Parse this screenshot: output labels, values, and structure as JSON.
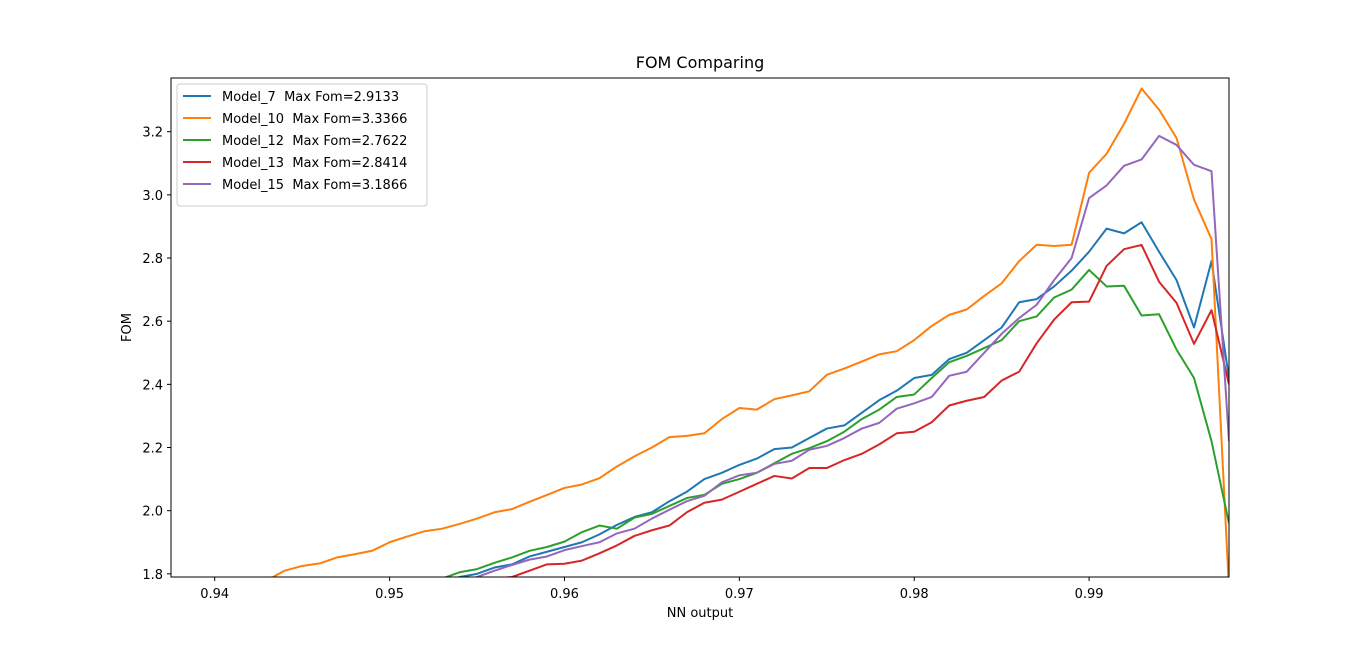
{
  "chart_data": {
    "type": "line",
    "title": "FOM Comparing",
    "xlabel": "NN output",
    "ylabel": "FOM",
    "xlim": [
      0.9375,
      0.998
    ],
    "ylim": [
      1.79,
      3.37
    ],
    "xticks": [
      "0.94",
      "0.95",
      "0.96",
      "0.97",
      "0.98",
      "0.99"
    ],
    "yticks": [
      "1.8",
      "2.0",
      "2.2",
      "2.4",
      "2.6",
      "2.8",
      "3.0",
      "3.2"
    ],
    "grid": false,
    "legend_position": "top-left",
    "series": [
      {
        "name": "Model_7  Max Fom=2.9133",
        "color": "#1f77b4",
        "x": [
          0.953,
          0.954,
          0.955,
          0.956,
          0.957,
          0.958,
          0.959,
          0.96,
          0.961,
          0.962,
          0.963,
          0.964,
          0.965,
          0.966,
          0.967,
          0.968,
          0.969,
          0.97,
          0.971,
          0.972,
          0.973,
          0.974,
          0.975,
          0.976,
          0.977,
          0.978,
          0.979,
          0.98,
          0.981,
          0.982,
          0.983,
          0.984,
          0.985,
          0.986,
          0.987,
          0.988,
          0.989,
          0.99,
          0.991,
          0.992,
          0.993,
          0.994,
          0.995,
          0.996,
          0.997,
          0.998
        ],
        "y": [
          1.77,
          1.79,
          1.8,
          1.82,
          1.83,
          1.855,
          1.87,
          1.885,
          1.9,
          1.925,
          1.955,
          1.98,
          1.995,
          2.03,
          2.06,
          2.1,
          2.12,
          2.145,
          2.165,
          2.195,
          2.2,
          2.23,
          2.26,
          2.27,
          2.31,
          2.35,
          2.38,
          2.42,
          2.43,
          2.48,
          2.5,
          2.54,
          2.58,
          2.66,
          2.67,
          2.71,
          2.76,
          2.82,
          2.893,
          2.878,
          2.9133,
          2.82,
          2.73,
          2.58,
          2.79,
          2.42
        ]
      },
      {
        "name": "Model_10  Max Fom=3.3366",
        "color": "#ff7f0e",
        "x": [
          0.942,
          0.943,
          0.944,
          0.945,
          0.946,
          0.947,
          0.948,
          0.949,
          0.95,
          0.951,
          0.952,
          0.953,
          0.954,
          0.955,
          0.956,
          0.957,
          0.958,
          0.959,
          0.96,
          0.961,
          0.962,
          0.963,
          0.964,
          0.965,
          0.966,
          0.967,
          0.968,
          0.969,
          0.97,
          0.971,
          0.972,
          0.973,
          0.974,
          0.975,
          0.976,
          0.977,
          0.978,
          0.979,
          0.98,
          0.981,
          0.982,
          0.983,
          0.984,
          0.985,
          0.986,
          0.987,
          0.988,
          0.989,
          0.99,
          0.991,
          0.992,
          0.993,
          0.994,
          0.995,
          0.996,
          0.997,
          0.998
        ],
        "y": [
          1.75,
          1.78,
          1.81,
          1.825,
          1.833,
          1.852,
          1.862,
          1.873,
          1.9,
          1.918,
          1.935,
          1.943,
          1.958,
          1.975,
          1.995,
          2.005,
          2.028,
          2.05,
          2.072,
          2.083,
          2.103,
          2.14,
          2.172,
          2.2,
          2.233,
          2.237,
          2.245,
          2.29,
          2.325,
          2.32,
          2.353,
          2.365,
          2.378,
          2.43,
          2.45,
          2.472,
          2.495,
          2.505,
          2.54,
          2.585,
          2.62,
          2.637,
          2.68,
          2.72,
          2.79,
          2.842,
          2.838,
          2.842,
          3.07,
          3.13,
          3.225,
          3.3366,
          3.27,
          3.18,
          2.985,
          2.86,
          1.75
        ]
      },
      {
        "name": "Model_12  Max Fom=2.7622",
        "color": "#2ca02c",
        "x": [
          0.952,
          0.953,
          0.954,
          0.955,
          0.956,
          0.957,
          0.958,
          0.959,
          0.96,
          0.961,
          0.962,
          0.963,
          0.964,
          0.965,
          0.966,
          0.967,
          0.968,
          0.969,
          0.97,
          0.971,
          0.972,
          0.973,
          0.974,
          0.975,
          0.976,
          0.977,
          0.978,
          0.979,
          0.98,
          0.981,
          0.982,
          0.983,
          0.984,
          0.985,
          0.986,
          0.987,
          0.988,
          0.989,
          0.99,
          0.991,
          0.992,
          0.993,
          0.994,
          0.995,
          0.996,
          0.997,
          0.998
        ],
        "y": [
          1.77,
          1.785,
          1.805,
          1.815,
          1.835,
          1.852,
          1.873,
          1.885,
          1.902,
          1.932,
          1.953,
          1.943,
          1.978,
          1.99,
          2.015,
          2.04,
          2.05,
          2.085,
          2.1,
          2.12,
          2.15,
          2.18,
          2.198,
          2.22,
          2.25,
          2.29,
          2.32,
          2.36,
          2.368,
          2.42,
          2.47,
          2.49,
          2.515,
          2.54,
          2.6,
          2.615,
          2.675,
          2.7,
          2.7622,
          2.71,
          2.712,
          2.618,
          2.622,
          2.51,
          2.42,
          2.22,
          1.96
        ]
      },
      {
        "name": "Model_13  Max Fom=2.8414",
        "color": "#d62728",
        "x": [
          0.954,
          0.955,
          0.956,
          0.957,
          0.958,
          0.959,
          0.96,
          0.961,
          0.962,
          0.963,
          0.964,
          0.965,
          0.966,
          0.967,
          0.968,
          0.969,
          0.97,
          0.971,
          0.972,
          0.973,
          0.974,
          0.975,
          0.976,
          0.977,
          0.978,
          0.979,
          0.98,
          0.981,
          0.982,
          0.983,
          0.984,
          0.985,
          0.986,
          0.987,
          0.988,
          0.989,
          0.99,
          0.991,
          0.992,
          0.993,
          0.994,
          0.995,
          0.996,
          0.997,
          0.998
        ],
        "y": [
          1.76,
          1.775,
          1.785,
          1.79,
          1.81,
          1.83,
          1.832,
          1.842,
          1.865,
          1.89,
          1.92,
          1.938,
          1.953,
          1.995,
          2.025,
          2.035,
          2.06,
          2.085,
          2.11,
          2.102,
          2.135,
          2.135,
          2.16,
          2.18,
          2.21,
          2.245,
          2.25,
          2.28,
          2.333,
          2.348,
          2.36,
          2.412,
          2.44,
          2.53,
          2.605,
          2.66,
          2.662,
          2.775,
          2.828,
          2.8414,
          2.725,
          2.658,
          2.528,
          2.635,
          2.4
        ]
      },
      {
        "name": "Model_15  Max Fom=3.1866",
        "color": "#9467bd",
        "x": [
          0.954,
          0.955,
          0.956,
          0.957,
          0.958,
          0.959,
          0.96,
          0.961,
          0.962,
          0.963,
          0.964,
          0.965,
          0.966,
          0.967,
          0.968,
          0.969,
          0.97,
          0.971,
          0.972,
          0.973,
          0.974,
          0.975,
          0.976,
          0.977,
          0.978,
          0.979,
          0.98,
          0.981,
          0.982,
          0.983,
          0.984,
          0.985,
          0.986,
          0.987,
          0.988,
          0.989,
          0.99,
          0.991,
          0.992,
          0.993,
          0.994,
          0.995,
          0.996,
          0.997,
          0.998
        ],
        "y": [
          1.76,
          1.79,
          1.81,
          1.828,
          1.845,
          1.855,
          1.875,
          1.888,
          1.9,
          1.928,
          1.943,
          1.975,
          2.003,
          2.03,
          2.047,
          2.09,
          2.112,
          2.12,
          2.148,
          2.158,
          2.193,
          2.205,
          2.23,
          2.26,
          2.278,
          2.323,
          2.34,
          2.36,
          2.427,
          2.44,
          2.5,
          2.56,
          2.61,
          2.652,
          2.73,
          2.8,
          2.99,
          3.03,
          3.092,
          3.112,
          3.1866,
          3.158,
          3.095,
          3.075,
          2.22
        ]
      }
    ]
  }
}
